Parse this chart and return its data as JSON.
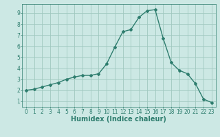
{
  "x": [
    0,
    1,
    2,
    3,
    4,
    5,
    6,
    7,
    8,
    9,
    10,
    11,
    12,
    13,
    14,
    15,
    16,
    17,
    18,
    19,
    20,
    21,
    22,
    23
  ],
  "y": [
    2.0,
    2.1,
    2.3,
    2.5,
    2.7,
    3.0,
    3.2,
    3.35,
    3.35,
    3.5,
    4.4,
    5.9,
    7.3,
    7.5,
    8.6,
    9.2,
    9.3,
    6.7,
    4.5,
    3.8,
    3.5,
    2.6,
    1.2,
    0.9
  ],
  "line_color": "#2e7d6e",
  "marker": "D",
  "marker_size": 2.0,
  "line_width": 1.0,
  "bg_color": "#cce8e4",
  "grid_color": "#a0c8c0",
  "xlabel": "Humidex (Indice chaleur)",
  "xlim": [
    -0.5,
    23.5
  ],
  "ylim": [
    0.5,
    9.8
  ],
  "xticks": [
    0,
    1,
    2,
    3,
    4,
    5,
    6,
    7,
    8,
    9,
    10,
    11,
    12,
    13,
    14,
    15,
    16,
    17,
    18,
    19,
    20,
    21,
    22,
    23
  ],
  "yticks": [
    1,
    2,
    3,
    4,
    5,
    6,
    7,
    8,
    9
  ],
  "tick_fontsize": 5.5,
  "xlabel_fontsize": 7.0
}
